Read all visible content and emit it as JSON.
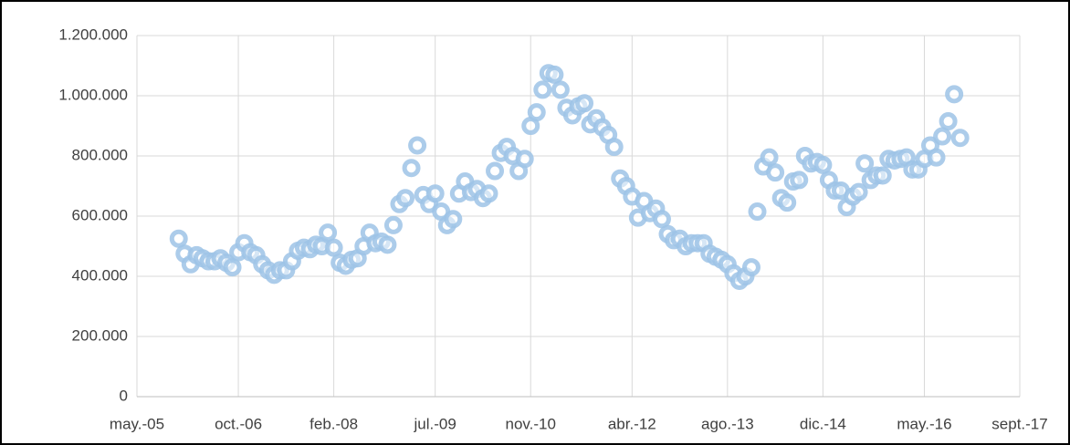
{
  "chart_data": {
    "type": "scatter",
    "x": [
      "2005-12",
      "2006-01",
      "2006-02",
      "2006-03",
      "2006-04",
      "2006-05",
      "2006-06",
      "2006-07",
      "2006-08",
      "2006-09",
      "2006-10",
      "2006-11",
      "2006-12",
      "2007-01",
      "2007-02",
      "2007-03",
      "2007-04",
      "2007-05",
      "2007-06",
      "2007-07",
      "2007-08",
      "2007-09",
      "2007-10",
      "2007-11",
      "2007-12",
      "2008-01",
      "2008-02",
      "2008-03",
      "2008-04",
      "2008-05",
      "2008-06",
      "2008-07",
      "2008-08",
      "2008-09",
      "2008-10",
      "2008-11",
      "2008-12",
      "2009-01",
      "2009-02",
      "2009-03",
      "2009-04",
      "2009-05",
      "2009-06",
      "2009-07",
      "2009-08",
      "2009-09",
      "2009-10",
      "2009-11",
      "2009-12",
      "2010-01",
      "2010-02",
      "2010-03",
      "2010-04",
      "2010-05",
      "2010-06",
      "2010-07",
      "2010-08",
      "2010-09",
      "2010-10",
      "2010-11",
      "2010-12",
      "2011-01",
      "2011-02",
      "2011-03",
      "2011-04",
      "2011-05",
      "2011-06",
      "2011-07",
      "2011-08",
      "2011-09",
      "2011-10",
      "2011-11",
      "2011-12",
      "2012-01",
      "2012-02",
      "2012-03",
      "2012-04",
      "2012-05",
      "2012-06",
      "2012-07",
      "2012-08",
      "2012-09",
      "2012-10",
      "2012-11",
      "2012-12",
      "2013-01",
      "2013-02",
      "2013-03",
      "2013-04",
      "2013-05",
      "2013-06",
      "2013-07",
      "2013-08",
      "2013-09",
      "2013-10",
      "2013-11",
      "2013-12",
      "2014-01",
      "2014-02",
      "2014-03",
      "2014-04",
      "2014-05",
      "2014-06",
      "2014-07",
      "2014-08",
      "2014-09",
      "2014-10",
      "2014-11",
      "2014-12",
      "2015-01",
      "2015-02",
      "2015-03",
      "2015-04",
      "2015-05",
      "2015-06",
      "2015-07",
      "2015-08",
      "2015-09",
      "2015-10",
      "2015-11",
      "2015-12",
      "2016-01",
      "2016-02",
      "2016-03",
      "2016-04",
      "2016-05",
      "2016-06",
      "2016-07",
      "2016-08",
      "2016-09",
      "2016-10",
      "2016-11"
    ],
    "values": [
      525000,
      475000,
      440000,
      470000,
      460000,
      450000,
      450000,
      460000,
      445000,
      430000,
      480000,
      510000,
      480000,
      470000,
      440000,
      420000,
      405000,
      420000,
      420000,
      450000,
      485000,
      495000,
      490000,
      505000,
      500000,
      545000,
      495000,
      445000,
      435000,
      455000,
      460000,
      500000,
      545000,
      510000,
      515000,
      505000,
      570000,
      640000,
      660000,
      760000,
      835000,
      670000,
      640000,
      675000,
      615000,
      570000,
      590000,
      675000,
      715000,
      680000,
      690000,
      660000,
      675000,
      750000,
      810000,
      830000,
      800000,
      750000,
      790000,
      900000,
      945000,
      1020000,
      1075000,
      1070000,
      1020000,
      960000,
      935000,
      965000,
      975000,
      905000,
      925000,
      895000,
      870000,
      830000,
      725000,
      700000,
      665000,
      595000,
      650000,
      610000,
      625000,
      590000,
      540000,
      520000,
      525000,
      500000,
      510000,
      510000,
      510000,
      475000,
      465000,
      455000,
      440000,
      410000,
      385000,
      400000,
      430000,
      615000,
      765000,
      795000,
      745000,
      660000,
      645000,
      715000,
      720000,
      800000,
      775000,
      780000,
      770000,
      720000,
      685000,
      685000,
      630000,
      665000,
      680000,
      775000,
      720000,
      735000,
      735000,
      790000,
      785000,
      790000,
      795000,
      755000,
      755000,
      790000,
      835000,
      795000,
      865000,
      915000,
      1005000,
      860000
    ],
    "color": "#9dc3e6",
    "xlim": [
      "2005-05",
      "2017-09"
    ],
    "xticks": [
      {
        "value": "2005-05",
        "label": "may.-05"
      },
      {
        "value": "2006-10",
        "label": "oct.-06"
      },
      {
        "value": "2008-02",
        "label": "feb.-08"
      },
      {
        "value": "2009-07",
        "label": "jul.-09"
      },
      {
        "value": "2010-11",
        "label": "nov.-10"
      },
      {
        "value": "2012-04",
        "label": "abr.-12"
      },
      {
        "value": "2013-08",
        "label": "ago.-13"
      },
      {
        "value": "2014-12",
        "label": "dic.-14"
      },
      {
        "value": "2016-05",
        "label": "may.-16"
      },
      {
        "value": "2017-09",
        "label": "sept.-17"
      }
    ],
    "ylim": [
      0,
      1200000
    ],
    "yticks": [
      0,
      {
        "value": 200000,
        "label": "200.000"
      },
      {
        "value": 400000,
        "label": "400.000"
      },
      {
        "value": 600000,
        "label": "600.000"
      },
      {
        "value": 800000,
        "label": "800.000"
      },
      {
        "value": 1000000,
        "label": "1.000.000"
      },
      {
        "value": 1200000,
        "label": "1.200.000"
      }
    ],
    "grid": true
  }
}
